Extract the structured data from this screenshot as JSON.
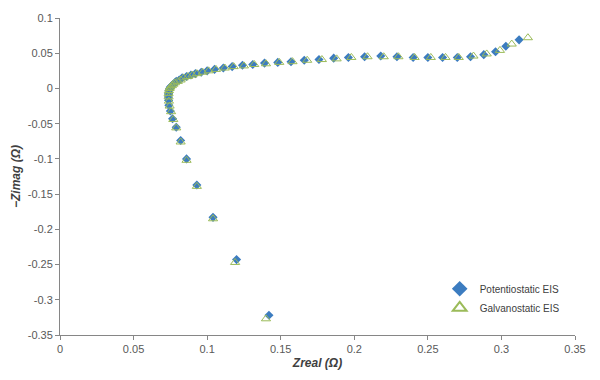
{
  "chart_data": {
    "type": "scatter",
    "x_label": "Zreal (Ω)",
    "y_label": "−Zimag (Ω)",
    "xlim": [
      0,
      0.35
    ],
    "xticks": [
      0,
      0.05,
      0.1,
      0.15,
      0.2,
      0.25,
      0.3,
      0.35
    ],
    "ylim": [
      -0.35,
      0.1
    ],
    "yticks": [
      -0.35,
      -0.3,
      -0.25,
      -0.2,
      -0.15,
      -0.1,
      -0.05,
      0,
      0.05,
      0.1
    ],
    "grid": false,
    "legend": "lower right",
    "series": [
      {
        "name": "Potentiostatic EIS",
        "color": "#3c7cc0",
        "marker": "diamond",
        "x": [
          0.312,
          0.303,
          0.296,
          0.288,
          0.279,
          0.27,
          0.26,
          0.25,
          0.24,
          0.229,
          0.218,
          0.207,
          0.196,
          0.186,
          0.176,
          0.166,
          0.157,
          0.148,
          0.139,
          0.131,
          0.124,
          0.117,
          0.111,
          0.105,
          0.1,
          0.096,
          0.092,
          0.089,
          0.086,
          0.083,
          0.081,
          0.079,
          0.078,
          0.077,
          0.076,
          0.075,
          0.0745,
          0.074,
          0.0738,
          0.0737,
          0.0738,
          0.074,
          0.075,
          0.0765,
          0.079,
          0.082,
          0.086,
          0.093,
          0.104,
          0.12,
          0.142
        ],
        "values": [
          0.069,
          0.06,
          0.052,
          0.048,
          0.045,
          0.044,
          0.044,
          0.044,
          0.044,
          0.045,
          0.046,
          0.045,
          0.044,
          0.043,
          0.041,
          0.04,
          0.038,
          0.037,
          0.036,
          0.034,
          0.033,
          0.031,
          0.029,
          0.027,
          0.025,
          0.023,
          0.021,
          0.019,
          0.017,
          0.015,
          0.012,
          0.01,
          0.008,
          0.006,
          0.004,
          0.002,
          0.0,
          -0.003,
          -0.007,
          -0.012,
          -0.017,
          -0.024,
          -0.032,
          -0.043,
          -0.055,
          -0.074,
          -0.1,
          -0.137,
          -0.183,
          -0.243,
          -0.322
        ]
      },
      {
        "name": "Galvanostatic EIS",
        "color": "#9bbb59",
        "marker": "triangle-open",
        "x": [
          0.318,
          0.307,
          0.299,
          0.29,
          0.281,
          0.271,
          0.262,
          0.252,
          0.241,
          0.23,
          0.22,
          0.209,
          0.198,
          0.188,
          0.178,
          0.168,
          0.158,
          0.149,
          0.14,
          0.132,
          0.125,
          0.118,
          0.112,
          0.106,
          0.101,
          0.097,
          0.093,
          0.09,
          0.087,
          0.084,
          0.082,
          0.08,
          0.078,
          0.077,
          0.076,
          0.075,
          0.0745,
          0.074,
          0.0738,
          0.0738,
          0.074,
          0.0745,
          0.0755,
          0.077,
          0.079,
          0.082,
          0.086,
          0.093,
          0.104,
          0.119,
          0.14
        ],
        "values": [
          0.072,
          0.063,
          0.054,
          0.049,
          0.046,
          0.044,
          0.044,
          0.044,
          0.044,
          0.045,
          0.045,
          0.045,
          0.044,
          0.042,
          0.041,
          0.04,
          0.038,
          0.037,
          0.035,
          0.034,
          0.032,
          0.031,
          0.029,
          0.027,
          0.025,
          0.023,
          0.021,
          0.019,
          0.017,
          0.015,
          0.012,
          0.01,
          0.008,
          0.006,
          0.004,
          0.002,
          0.0,
          -0.003,
          -0.007,
          -0.012,
          -0.018,
          -0.025,
          -0.033,
          -0.044,
          -0.056,
          -0.076,
          -0.102,
          -0.139,
          -0.185,
          -0.247,
          -0.327
        ]
      }
    ]
  }
}
